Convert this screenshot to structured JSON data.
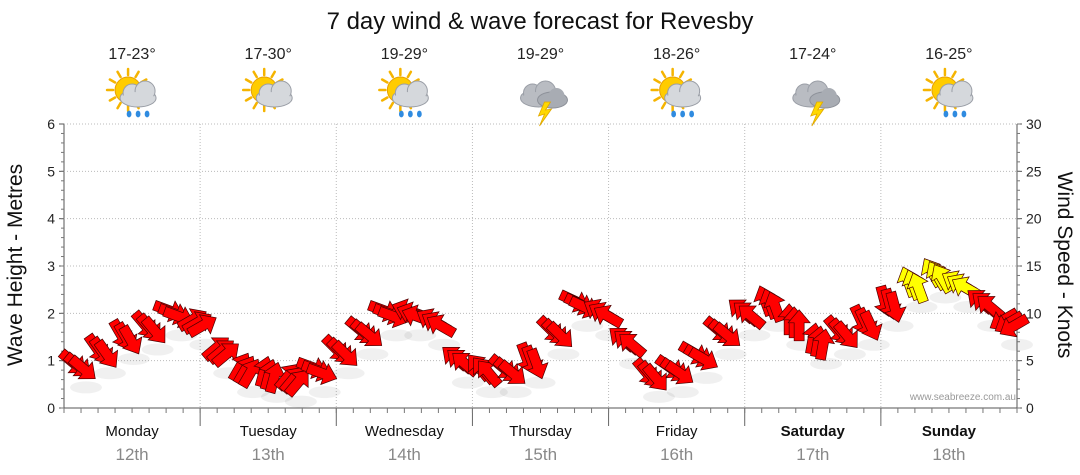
{
  "chart_data": {
    "type": "line",
    "title": "7 day wind & wave forecast for Revesby",
    "ylabel_left": "Wave Height - Metres",
    "ylabel_right": "Wind Speed - Knots",
    "ylim_left": [
      0,
      6
    ],
    "ylim_right": [
      0,
      30
    ],
    "yticks_left": [
      "0",
      "1",
      "2",
      "3",
      "4",
      "5",
      "6"
    ],
    "yticks_right": [
      "0",
      "5",
      "10",
      "15",
      "20",
      "25",
      "30"
    ],
    "grid": true,
    "days": [
      {
        "name": "Monday",
        "date": "12th",
        "temp": "17-23°",
        "weather": "partly-cloudy-rain",
        "bold": false
      },
      {
        "name": "Tuesday",
        "date": "13th",
        "temp": "17-30°",
        "weather": "partly-cloudy",
        "bold": false
      },
      {
        "name": "Wednesday",
        "date": "14th",
        "temp": "19-29°",
        "weather": "partly-cloudy-rain",
        "bold": false
      },
      {
        "name": "Thursday",
        "date": "15th",
        "temp": "19-29°",
        "weather": "storm",
        "bold": false
      },
      {
        "name": "Friday",
        "date": "16th",
        "temp": "18-26°",
        "weather": "partly-cloudy-rain",
        "bold": false
      },
      {
        "name": "Saturday",
        "date": "17th",
        "temp": "17-24°",
        "weather": "storm",
        "bold": true
      },
      {
        "name": "Sunday",
        "date": "18th",
        "temp": "16-25°",
        "weather": "partly-cloudy-rain",
        "bold": true
      }
    ],
    "series": [
      {
        "name": "Wind Speed (knots)",
        "low_wind_color": "#ff0000",
        "high_wind_color": "#ffff00",
        "high_wind_threshold_knots": 12,
        "hours_per_point": 3,
        "values": [
          4.5,
          6,
          7.5,
          8.5,
          10,
          9,
          6,
          4,
          3.5,
          3,
          4,
          6,
          8,
          10,
          10,
          9,
          5,
          4,
          4,
          5,
          8,
          11,
          10,
          7,
          3.5,
          4,
          5.5,
          8,
          10,
          11,
          9,
          7,
          8,
          9,
          11,
          13,
          14,
          13,
          11,
          9
        ],
        "directions_deg": [
          40,
          55,
          60,
          50,
          20,
          330,
          320,
          300,
          285,
          310,
          20,
          45,
          40,
          20,
          200,
          210,
          220,
          230,
          40,
          70,
          45,
          25,
          210,
          220,
          50,
          35,
          30,
          40,
          220,
          250,
          270,
          280,
          50,
          65,
          75,
          250,
          240,
          210,
          220,
          150
        ]
      }
    ],
    "credit": "www.seabreeze.com.au"
  }
}
